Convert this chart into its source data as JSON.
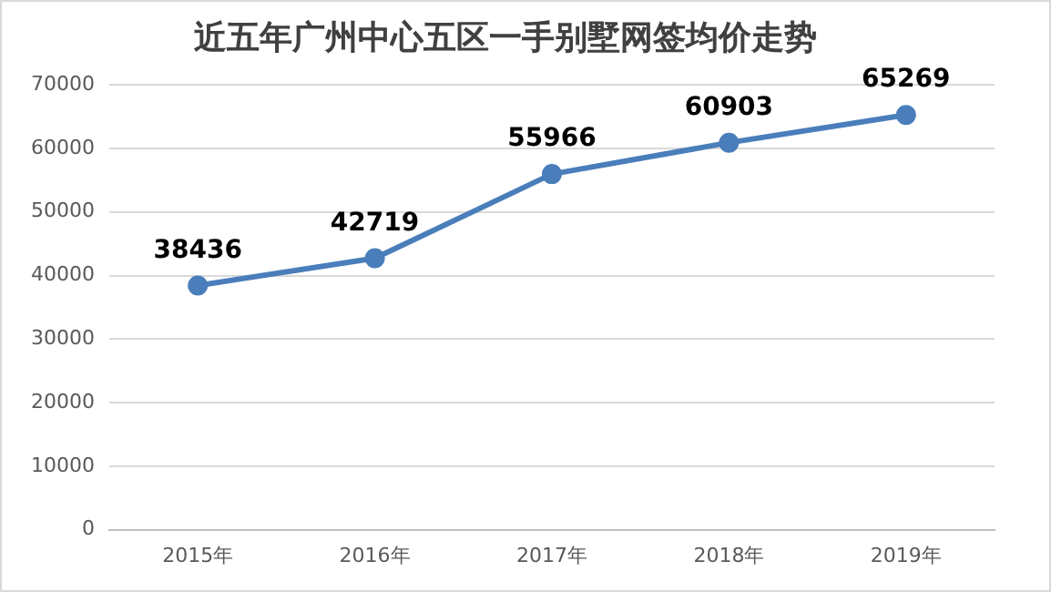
{
  "chart_data": {
    "type": "line",
    "title": "近五年广州中心五区一手别墅网签均价走势",
    "categories": [
      "2015年",
      "2016年",
      "2017年",
      "2018年",
      "2019年"
    ],
    "series": [
      {
        "color": "#4a7ebb",
        "values": [
          38436,
          42719,
          55966,
          60903,
          65269
        ]
      }
    ],
    "ylim": [
      0,
      70000
    ],
    "yticks": [
      0,
      10000,
      20000,
      30000,
      40000,
      50000,
      60000,
      70000
    ],
    "grid": "y",
    "legend": false,
    "marker": "circle",
    "line_style": "solid",
    "data_labels": true
  }
}
